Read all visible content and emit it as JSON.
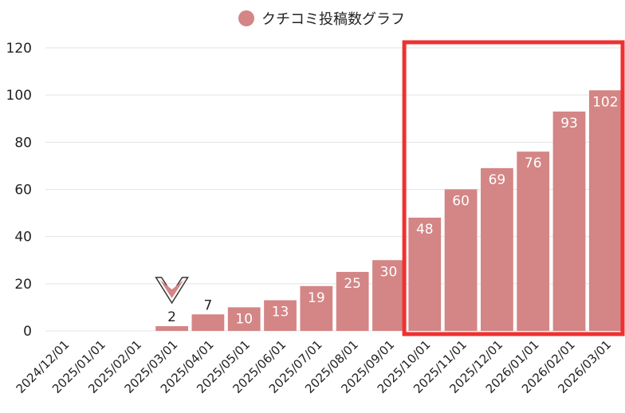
{
  "chart_data": {
    "type": "bar",
    "legend": {
      "label": "クチコミ投稿数グラフ",
      "position": "top"
    },
    "categories": [
      "2024/12/01",
      "2025/01/01",
      "2025/02/01",
      "2025/03/01",
      "2025/04/01",
      "2025/05/01",
      "2025/06/01",
      "2025/07/01",
      "2025/08/01",
      "2025/09/01",
      "2025/10/01",
      "2025/11/01",
      "2025/12/01",
      "2026/01/01",
      "2026/02/01",
      "2026/03/01"
    ],
    "series": [
      {
        "name": "クチコミ投稿数グラフ",
        "values": [
          0,
          0,
          0,
          2,
          7,
          10,
          13,
          19,
          25,
          30,
          48,
          60,
          69,
          76,
          93,
          102
        ]
      }
    ],
    "ylim": [
      0,
      120
    ],
    "yticks": [
      0,
      20,
      40,
      60,
      80,
      100,
      120
    ],
    "grid": true,
    "colors": {
      "bar": "#d48585",
      "highlight": "#f03030",
      "marker": "#d48585"
    },
    "annotations": [
      {
        "type": "marker",
        "shape": "down-chevron",
        "category": "2025/03/01"
      },
      {
        "type": "highlight-box",
        "from": "2025/10/01",
        "to": "2026/03/01"
      }
    ]
  }
}
